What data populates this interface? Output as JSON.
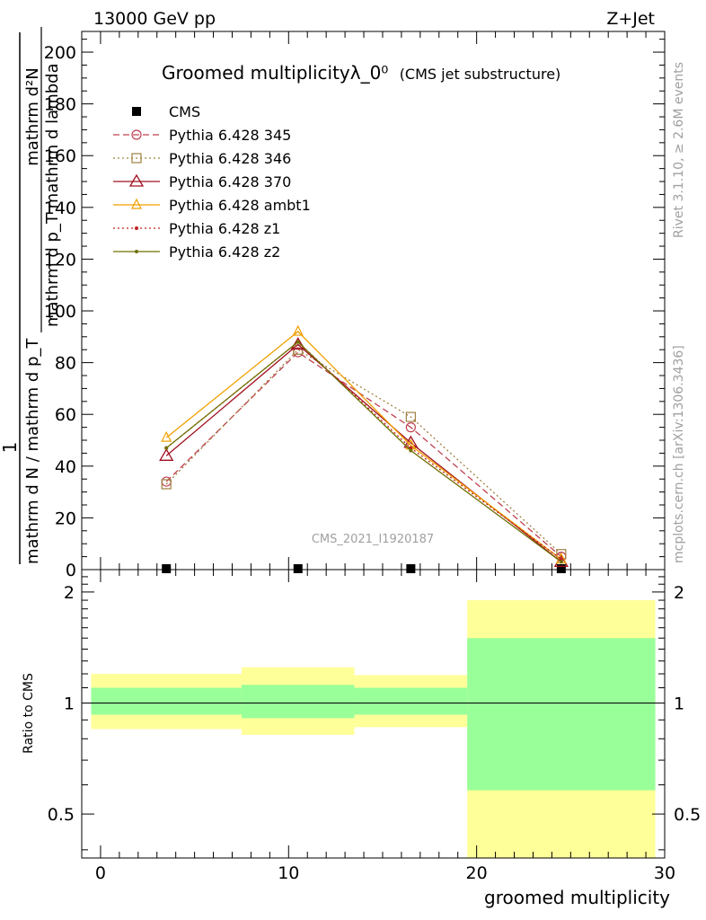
{
  "header": {
    "left": "13000 GeV pp",
    "right": "Z+Jet"
  },
  "side_labels": {
    "rivet": "Rivet 3.1.10, ≥ 2.6M events",
    "mcplots": "mcplots.cern.ch [arXiv:1306.3436]"
  },
  "chart_data": [
    {
      "type": "line",
      "title": "Groomed multiplicityλ_0⁰",
      "subtitle": "(CMS jet substructure)",
      "ylabel_numerator": "mathrm d²N",
      "ylabel_denominator": "mathrm d p_T mathrm d lambda",
      "ylabel_prefactor_num": "1",
      "ylabel_prefactor_den": "mathrm d N / mathrm d p_T",
      "watermark": "CMS_2021_I1920187",
      "xlim": [
        -1,
        30
      ],
      "ylim": [
        0,
        208
      ],
      "yticks": [
        20,
        40,
        60,
        80,
        100,
        120,
        140,
        160,
        180,
        200
      ],
      "legend_placement": "top-left",
      "x": [
        3.5,
        10.5,
        16.5,
        24.5
      ],
      "series": [
        {
          "name": "CMS",
          "color": "#000000",
          "style": "solid",
          "marker": "square-filled",
          "values": [
            0.3,
            0.6,
            0.5,
            0.2
          ]
        },
        {
          "name": "Pythia 6.428 345",
          "color": "#c04050",
          "style": "dashed",
          "marker": "circle-open",
          "values": [
            34,
            84,
            55,
            5
          ]
        },
        {
          "name": "Pythia 6.428 346",
          "color": "#a08040",
          "style": "dotted",
          "marker": "square-open",
          "values": [
            33,
            85,
            59,
            6
          ]
        },
        {
          "name": "Pythia 6.428 370",
          "color": "#a01020",
          "style": "solid",
          "marker": "triangle-open",
          "values": [
            44,
            87,
            49,
            3
          ]
        },
        {
          "name": "Pythia 6.428 ambt1",
          "color": "#f0a000",
          "style": "solid",
          "marker": "triangle-open-small",
          "values": [
            51,
            92,
            48,
            4
          ]
        },
        {
          "name": "Pythia 6.428 z1",
          "color": "#c02020",
          "style": "dotted",
          "marker": "dot",
          "values": [
            47,
            88,
            47,
            4
          ]
        },
        {
          "name": "Pythia 6.428 z2",
          "color": "#707000",
          "style": "solid",
          "marker": "dot",
          "values": [
            47,
            88,
            46,
            3
          ]
        }
      ]
    },
    {
      "type": "area",
      "ylabel": "Ratio to CMS",
      "xlabel": "groomed multiplicity",
      "xlim": [
        -1,
        30
      ],
      "ylim": [
        0.38,
        2.3
      ],
      "yscale": "log",
      "yticks": [
        0.5,
        1,
        2
      ],
      "xticks": [
        0,
        10,
        20,
        30
      ],
      "reference_line": 1,
      "bins": [
        {
          "xlow": -0.5,
          "xhigh": 7.5,
          "inner_low": 0.93,
          "inner_high": 1.1,
          "outer_low": 0.85,
          "outer_high": 1.2
        },
        {
          "xlow": 7.5,
          "xhigh": 13.5,
          "inner_low": 0.91,
          "inner_high": 1.12,
          "outer_low": 0.82,
          "outer_high": 1.25
        },
        {
          "xlow": 13.5,
          "xhigh": 19.5,
          "inner_low": 0.93,
          "inner_high": 1.1,
          "outer_low": 0.86,
          "outer_high": 1.19
        },
        {
          "xlow": 19.5,
          "xhigh": 29.5,
          "inner_low": 0.58,
          "inner_high": 1.5,
          "outer_low": 0.35,
          "outer_high": 1.9
        }
      ],
      "band_colors": {
        "inner": "#99ff99",
        "outer": "#ffff99"
      }
    }
  ]
}
